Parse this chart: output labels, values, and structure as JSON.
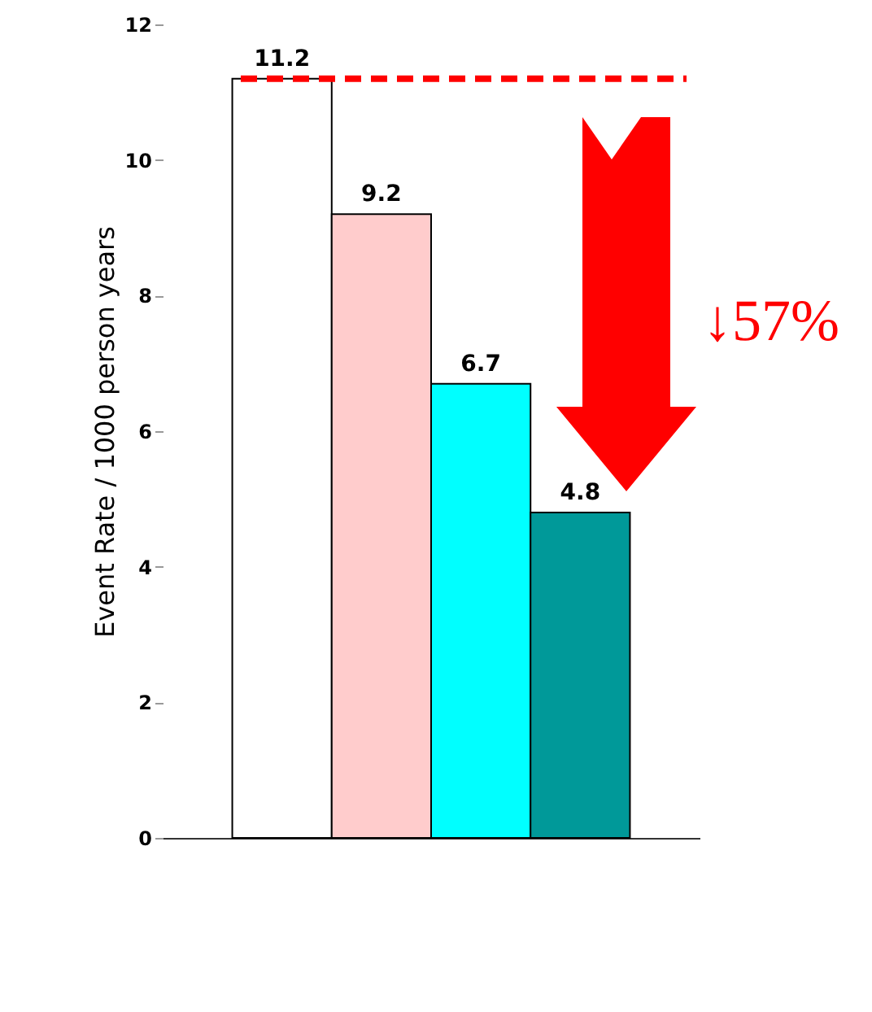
{
  "chart_data": {
    "type": "bar",
    "ylabel": "Event Rate / 1000 person years",
    "categories": [
      null,
      null,
      null,
      null
    ],
    "values": [
      11.2,
      9.2,
      6.7,
      4.8
    ],
    "colors": [
      "#ffffff",
      "#ffcccc",
      "#00ffff",
      "#009999"
    ],
    "data_labels": true,
    "ylim": [
      0,
      12
    ],
    "yticks": [
      0,
      2,
      4,
      6,
      8,
      10,
      12
    ],
    "tick_labels": "y",
    "grid": false,
    "ref_lines": [
      {
        "axis": "y",
        "value": 11.2,
        "color": "#ff0000",
        "line_style": "dashed"
      }
    ],
    "annotations": [
      "↓57%"
    ]
  }
}
